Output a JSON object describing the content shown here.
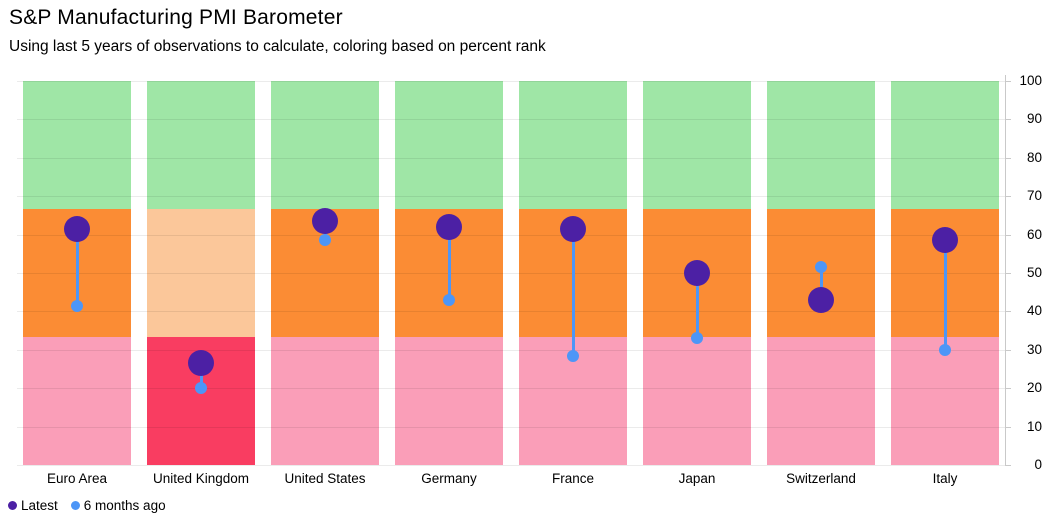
{
  "chart_data": {
    "type": "scatter",
    "title": "S&P Manufacturing PMI Barometer",
    "subtitle": "Using last 5 years of observations to calculate, coloring based on percent rank",
    "categories": [
      "Euro Area",
      "United Kingdom",
      "United States",
      "Germany",
      "France",
      "Japan",
      "Switzerland",
      "Italy"
    ],
    "series": [
      {
        "name": "Latest",
        "color": "#4C20A4",
        "values": [
          61.5,
          26.5,
          63.5,
          62,
          61.5,
          50,
          43,
          58.5
        ]
      },
      {
        "name": "6 months ago",
        "color": "#4D96F7",
        "values": [
          41.5,
          20,
          58.5,
          43,
          28.5,
          33,
          51.5,
          30
        ]
      }
    ],
    "y_axis": {
      "min": 0,
      "max": 100,
      "step": 10
    },
    "bands": {
      "boundaries": [
        0,
        33.33,
        66.67,
        100
      ],
      "default_colors": [
        "#FA9EB8",
        "#FB8C34",
        "#9FE6A6"
      ],
      "per_category_colors": {
        "United Kingdom": [
          "#F93D61",
          "#FBC79A",
          "#9FE6A6"
        ]
      }
    },
    "grid": true,
    "legend_position": "bottom-left",
    "connector_color": "#4D96F7",
    "axis_line_color": "#c9c9c9"
  }
}
